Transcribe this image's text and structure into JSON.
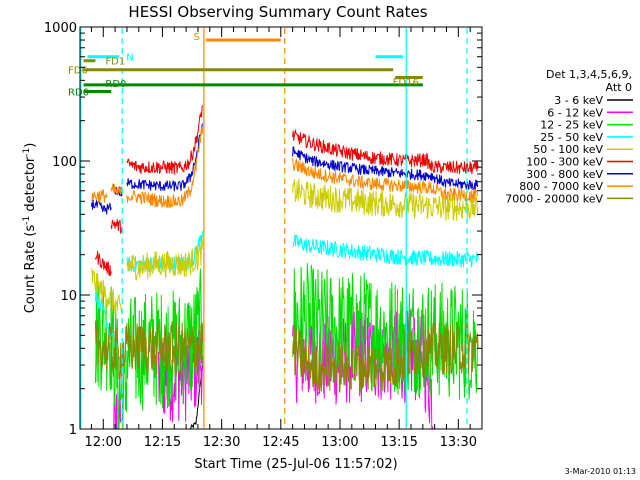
{
  "chart_data": {
    "type": "line",
    "title": "HESSI Observing Summary Count Rates",
    "xlabel": "Start Time (25-Jul-06 11:57:02)",
    "ylabel": "Count Rate (s",
    "ylabel_sup": "-1",
    "ylabel_end": " detector",
    "ylabel_end_sup": "-1",
    "ylabel_close": ")",
    "footer": "3-Mar-2010 01:13",
    "x_range_min": [
      -2.9,
      99
    ],
    "x_ticks": [
      {
        "min": 3,
        "label": "12:00"
      },
      {
        "min": 18,
        "label": "12:15"
      },
      {
        "min": 33,
        "label": "12:30"
      },
      {
        "min": 48,
        "label": "12:45"
      },
      {
        "min": 63,
        "label": "13:00"
      },
      {
        "min": 78,
        "label": "13:15"
      },
      {
        "min": 93,
        "label": "13:30"
      }
    ],
    "y_log": true,
    "y_range": [
      1,
      1000
    ],
    "y_ticks": [
      {
        "v": 1,
        "label": "1"
      },
      {
        "v": 10,
        "label": "10"
      },
      {
        "v": 100,
        "label": "100"
      },
      {
        "v": 1000,
        "label": "1000"
      }
    ],
    "legend": {
      "header1": "Det 1,3,4,5,6,9,",
      "header2": "Att 0",
      "entries": [
        {
          "label": "3 - 6 keV",
          "color": "#000000"
        },
        {
          "label": "6 - 12 keV",
          "color": "#ff00ff"
        },
        {
          "label": "12 - 25 keV",
          "color": "#00dd00"
        },
        {
          "label": "25 - 50 keV",
          "color": "#00ffff"
        },
        {
          "label": "50 - 100 keV",
          "color": "#cccc00"
        },
        {
          "label": "100 - 300 keV",
          "color": "#ee0000"
        },
        {
          "label": "300 - 800 keV",
          "color": "#0000cc"
        },
        {
          "label": "800 - 7000 keV",
          "color": "#ff8800"
        },
        {
          "label": "7000 - 20000 keV",
          "color": "#888800"
        }
      ]
    },
    "flag_bars": [
      {
        "label": "N",
        "color": "#00ffff",
        "y": 600,
        "segments": [
          [
            -1,
            7
          ],
          [
            72,
            79
          ]
        ]
      },
      {
        "label": "S",
        "color": "#ff8800",
        "y": 800,
        "segments": [
          [
            29,
            48
          ]
        ]
      },
      {
        "label": "FD1",
        "color": "#888800",
        "y": 560,
        "segments": [
          [
            -2,
            1
          ]
        ]
      },
      {
        "label": "FD6",
        "color": "#888800",
        "y": 480,
        "segments": [
          [
            -2,
            76.5
          ]
        ]
      },
      {
        "label": "FD16",
        "color": "#888800",
        "y": 420,
        "segments": [
          [
            77,
            84
          ]
        ]
      },
      {
        "label": "RD0",
        "color": "#008800",
        "y": 370,
        "segments": [
          [
            -2,
            84
          ]
        ]
      },
      {
        "label": "RD6",
        "color": "#008800",
        "y": 330,
        "segments": [
          [
            -2,
            5
          ]
        ]
      }
    ],
    "vertical_lines": [
      {
        "min": -2.7,
        "color": "#00ffff",
        "style": "solid"
      },
      {
        "min": 7.8,
        "color": "#00ffff",
        "style": "dashed"
      },
      {
        "min": 28.5,
        "color": "#ff8800",
        "style": "solid"
      },
      {
        "min": 49,
        "color": "#ff8800",
        "style": "dashed"
      },
      {
        "min": 79.8,
        "color": "#00ffff",
        "style": "solid"
      },
      {
        "min": 95.2,
        "color": "#00ffff",
        "style": "dashed"
      }
    ],
    "series": [
      {
        "name": "3 - 6 keV",
        "color": "#000000",
        "noise": 0.02,
        "segments": [
          [
            [
              25,
              1.0
            ],
            [
              26.5,
              1.1
            ],
            [
              27,
              1.5
            ],
            [
              27.8,
              2.5
            ],
            [
              28.2,
              3.0
            ]
          ]
        ]
      },
      {
        "name": "6 - 12 keV",
        "color": "#ff00ff",
        "noise": 0.35,
        "segments": [
          [
            [
              5.5,
              1.0
            ],
            [
              7.5,
              1.2
            ]
          ],
          [
            [
              17,
              2.5
            ],
            [
              22,
              2.5
            ],
            [
              24,
              2.5
            ],
            [
              27,
              3.0
            ],
            [
              28.2,
              3.5
            ]
          ],
          [
            [
              51,
              3.5
            ],
            [
              56,
              3.5
            ],
            [
              60,
              3.2
            ],
            [
              70,
              3.5
            ],
            [
              76,
              3.5
            ],
            [
              80,
              3.5
            ],
            [
              84,
              3.5
            ],
            [
              86,
              2.0
            ],
            [
              87,
              1.0
            ]
          ]
        ]
      },
      {
        "name": "12 - 25 keV",
        "color": "#00dd00",
        "noise": 0.45,
        "segments": [
          [
            [
              1,
              5.0
            ],
            [
              3,
              5.5
            ],
            [
              5,
              5.0
            ],
            [
              6,
              3.5
            ],
            [
              7,
              2.0
            ],
            [
              8.5,
              1.5
            ],
            [
              9,
              3.5
            ],
            [
              15,
              4.0
            ],
            [
              22,
              4.0
            ],
            [
              26,
              4.5
            ],
            [
              28.2,
              6.0
            ]
          ],
          [
            [
              51,
              7.0
            ],
            [
              56,
              6.0
            ],
            [
              62,
              5.5
            ],
            [
              70,
              5.5
            ],
            [
              76,
              5.0
            ],
            [
              82,
              5.0
            ],
            [
              90,
              4.5
            ],
            [
              98,
              4.5
            ]
          ]
        ]
      },
      {
        "name": "25 - 50 keV",
        "color": "#00ffff",
        "noise": 0.06,
        "segments": [
          [
            [
              1,
              10.0
            ],
            [
              3,
              7.5
            ],
            [
              5,
              5.0
            ],
            [
              7,
              3.5
            ],
            [
              7.8,
              2.5
            ]
          ],
          [
            [
              9,
              17.0
            ],
            [
              15,
              17.0
            ],
            [
              24,
              17.0
            ],
            [
              26,
              19.0
            ],
            [
              27,
              23.0
            ],
            [
              28.2,
              30.0
            ]
          ],
          [
            [
              51,
              25.0
            ],
            [
              56,
              23.0
            ],
            [
              62,
              22.0
            ],
            [
              70,
              20.5
            ],
            [
              80,
              19.0
            ],
            [
              90,
              18.5
            ],
            [
              98,
              18.5
            ]
          ]
        ]
      },
      {
        "name": "50 - 100 keV",
        "color": "#cccc00",
        "noise": 0.1,
        "segments": [
          [
            [
              0,
              14.0
            ],
            [
              2,
              11.0
            ],
            [
              4,
              10.0
            ],
            [
              6,
              8.5
            ],
            [
              7.8,
              7.5
            ]
          ],
          [
            [
              9,
              17.0
            ],
            [
              12,
              16.0
            ],
            [
              16,
              17.0
            ],
            [
              20,
              17.0
            ],
            [
              24,
              17.0
            ],
            [
              27,
              19.0
            ],
            [
              28.2,
              22.0
            ]
          ],
          [
            [
              51,
              60.0
            ],
            [
              56,
              55.0
            ],
            [
              62,
              52.0
            ],
            [
              70,
              49.0
            ],
            [
              80,
              47.0
            ],
            [
              90,
              45.0
            ],
            [
              98,
              45.0
            ]
          ]
        ]
      },
      {
        "name": "100 - 300 keV",
        "color": "#ee0000",
        "noise": 0.05,
        "segments": [
          [
            [
              1,
              20.0
            ],
            [
              3,
              17.0
            ],
            [
              5,
              15.0
            ]
          ],
          [
            [
              5,
              35.0
            ],
            [
              7.8,
              32.0
            ]
          ],
          [
            [
              9,
              95.0
            ],
            [
              12,
              90.0
            ],
            [
              18,
              90.0
            ],
            [
              23,
              88.0
            ],
            [
              25,
              100.0
            ],
            [
              26.5,
              140.0
            ],
            [
              27.5,
              200.0
            ],
            [
              28.2,
              260.0
            ]
          ],
          [
            [
              51,
              155.0
            ],
            [
              56,
              135.0
            ],
            [
              62,
              120.0
            ],
            [
              70,
              107.0
            ],
            [
              80,
              100.0
            ],
            [
              85,
              102.0
            ],
            [
              86,
              90.0
            ],
            [
              98,
              88.0
            ]
          ]
        ]
      },
      {
        "name": "300 - 800 keV",
        "color": "#0000cc",
        "noise": 0.04,
        "segments": [
          [
            [
              0,
              48.0
            ],
            [
              2,
              46.0
            ],
            [
              3,
              43.0
            ],
            [
              5,
              45.0
            ]
          ],
          [
            [
              5.5,
              62.0
            ],
            [
              7.8,
              58.0
            ]
          ],
          [
            [
              9,
              68.0
            ],
            [
              12,
              67.0
            ],
            [
              18,
              65.0
            ],
            [
              23,
              65.0
            ],
            [
              25,
              75.0
            ],
            [
              26.5,
              105.0
            ],
            [
              27.5,
              150.0
            ],
            [
              28.2,
              190.0
            ]
          ],
          [
            [
              51,
              118.0
            ],
            [
              56,
              100.0
            ],
            [
              62,
              92.0
            ],
            [
              70,
              85.0
            ],
            [
              80,
              80.0
            ],
            [
              86,
              78.0
            ],
            [
              90,
              68.0
            ],
            [
              98,
              66.0
            ]
          ]
        ]
      },
      {
        "name": "800 - 7000 keV",
        "color": "#ff8800",
        "noise": 0.05,
        "segments": [
          [
            [
              0,
              55.0
            ],
            [
              2,
              55.0
            ],
            [
              4,
              55.0
            ]
          ],
          [
            [
              5,
              60.0
            ],
            [
              7.8,
              58.0
            ]
          ],
          [
            [
              9,
              55.0
            ],
            [
              12,
              54.0
            ],
            [
              18,
              50.0
            ],
            [
              23,
              50.0
            ],
            [
              25,
              60.0
            ],
            [
              26.5,
              90.0
            ],
            [
              27.5,
              140.0
            ],
            [
              28.2,
              175.0
            ]
          ],
          [
            [
              51,
              95.0
            ],
            [
              56,
              82.0
            ],
            [
              62,
              75.0
            ],
            [
              70,
              68.0
            ],
            [
              80,
              65.0
            ],
            [
              86,
              63.0
            ],
            [
              90,
              56.0
            ],
            [
              98,
              55.0
            ]
          ]
        ]
      },
      {
        "name": "7000 - 20000 keV",
        "color": "#888800",
        "noise": 0.2,
        "segments": [
          [
            [
              1,
              4.2
            ],
            [
              4,
              4.0
            ],
            [
              7,
              3.5
            ],
            [
              9,
              4.0
            ],
            [
              13,
              4.0
            ],
            [
              18,
              4.0
            ],
            [
              24,
              4.0
            ],
            [
              27,
              4.0
            ],
            [
              28.2,
              4.5
            ]
          ],
          [
            [
              51,
              4.0
            ],
            [
              55,
              3.0
            ],
            [
              60,
              2.8
            ],
            [
              70,
              3.0
            ],
            [
              76,
              3.0
            ],
            [
              82,
              3.8
            ],
            [
              90,
              4.0
            ],
            [
              98,
              4.0
            ]
          ]
        ]
      }
    ]
  }
}
